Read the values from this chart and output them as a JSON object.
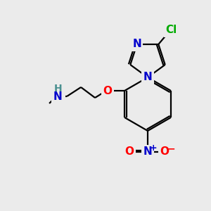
{
  "background_color": "#ebebeb",
  "bond_color": "#000000",
  "atom_colors": {
    "N": "#0000cc",
    "O": "#ff0000",
    "Cl": "#00aa00",
    "C": "#000000",
    "H": "#4a9090"
  },
  "figsize": [
    3.0,
    3.0
  ],
  "dpi": 100,
  "bond_lw": 1.6,
  "fontsize": 11
}
